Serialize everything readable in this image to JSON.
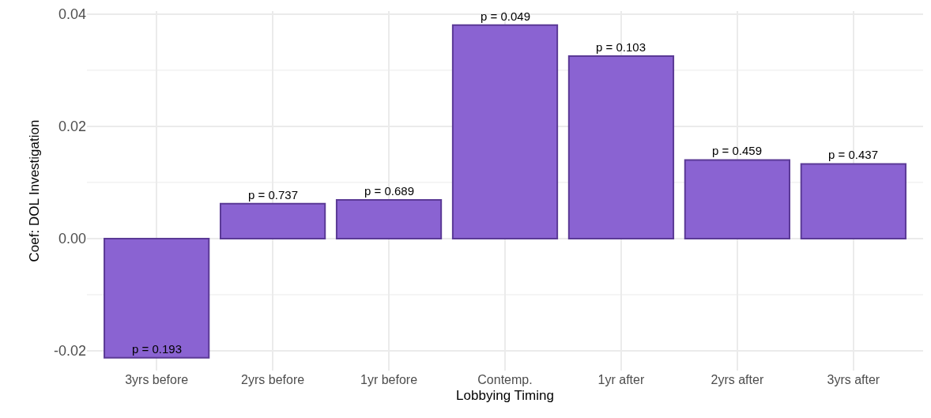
{
  "chart_data": {
    "type": "bar",
    "xlabel": "Lobbying Timing",
    "ylabel": "Coef: DOL Investigation",
    "categories": [
      "3yrs before",
      "2yrs before",
      "1yr before",
      "Contemp.",
      "1yr after",
      "2yrs after",
      "3yrs after"
    ],
    "series": [
      {
        "color": "#8a63d2",
        "values": [
          -0.0212,
          0.0062,
          0.0069,
          0.038,
          0.0325,
          0.014,
          0.0133
        ]
      }
    ],
    "annotations": [
      {
        "text": "p = 0.193",
        "x": "3yrs before",
        "y": -0.0212
      },
      {
        "text": "p = 0.737",
        "x": "2yrs before",
        "y": 0.0062
      },
      {
        "text": "p = 0.689",
        "x": "1yr before",
        "y": 0.0069
      },
      {
        "text": "p = 0.049",
        "x": "Contemp.",
        "y": 0.038
      },
      {
        "text": "p = 0.103",
        "x": "1yr after",
        "y": 0.0325
      },
      {
        "text": "p = 0.459",
        "x": "2yrs after",
        "y": 0.014
      },
      {
        "text": "p = 0.437",
        "x": "3yrs after",
        "y": 0.0133
      }
    ],
    "ylim": [
      -0.0235,
      0.0405
    ],
    "yticks": [
      {
        "value": -0.02,
        "label": "-0.02"
      },
      {
        "value": -0.01,
        "label": null
      },
      {
        "value": 0,
        "label": "0.00"
      },
      {
        "value": 0.01,
        "label": null
      },
      {
        "value": 0.02,
        "label": "0.02"
      },
      {
        "value": 0.03,
        "label": null
      },
      {
        "value": 0.04,
        "label": "0.04"
      }
    ],
    "grid": true
  }
}
